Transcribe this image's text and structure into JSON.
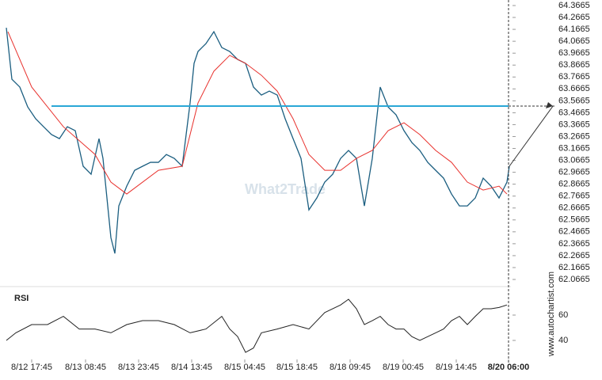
{
  "chart_data": [
    {
      "type": "line",
      "watermark": "What2Trade",
      "source": "www.autochartist.com",
      "xlim": [
        0,
        637
      ],
      "xticks": [
        {
          "value": 32,
          "label": "8/12 17:45"
        },
        {
          "value": 100,
          "label": "8/13 08:45"
        },
        {
          "value": 167,
          "label": "8/13 23:45"
        },
        {
          "value": 234,
          "label": "8/14 13:45"
        },
        {
          "value": 301,
          "label": "8/15 04:45"
        },
        {
          "value": 367,
          "label": "8/15 18:45"
        },
        {
          "value": 434,
          "label": "8/18 09:45"
        },
        {
          "value": 501,
          "label": "8/19 00:45"
        },
        {
          "value": 568,
          "label": "8/19 14:45"
        },
        {
          "value": 634,
          "label": "8/20 06:00"
        }
      ],
      "ylim": [
        62.02,
        64.413
      ],
      "yticks": [
        64.3665,
        64.2665,
        64.1665,
        64.0665,
        63.9665,
        63.8665,
        63.7665,
        63.6665,
        63.5665,
        63.4665,
        63.3665,
        63.2665,
        63.1665,
        63.0665,
        62.9665,
        62.8665,
        62.7665,
        62.6665,
        62.5665,
        62.4665,
        62.3665,
        62.2665,
        62.1665,
        62.0665
      ],
      "level": 63.522,
      "level_start": 57,
      "series": [
        {
          "color": "#1b5e80",
          "x": [
            0,
            7,
            17,
            27,
            37,
            47,
            57,
            67,
            77,
            87,
            97,
            107,
            117,
            122,
            132,
            137,
            142,
            152,
            162,
            172,
            182,
            192,
            202,
            212,
            222,
            232,
            237,
            242,
            252,
            262,
            272,
            282,
            292,
            302,
            312,
            322,
            332,
            342,
            352,
            362,
            372,
            382,
            392,
            402,
            412,
            422,
            432,
            442,
            452,
            462,
            472,
            482,
            492,
            502,
            512,
            522,
            532,
            542,
            552,
            562,
            572,
            582,
            592,
            602,
            612,
            622,
            632,
            635
          ],
          "values": [
            64.18,
            63.748,
            63.682,
            63.515,
            63.416,
            63.349,
            63.283,
            63.249,
            63.349,
            63.316,
            63.017,
            62.95,
            63.249,
            63.083,
            62.418,
            62.285,
            62.684,
            62.85,
            62.983,
            63.017,
            63.05,
            63.05,
            63.116,
            63.083,
            63.017,
            63.549,
            63.881,
            63.981,
            64.047,
            64.147,
            64.014,
            63.981,
            63.914,
            63.881,
            63.682,
            63.615,
            63.648,
            63.615,
            63.416,
            63.249,
            63.083,
            62.651,
            62.751,
            62.884,
            62.95,
            63.083,
            63.15,
            63.083,
            62.684,
            63.083,
            63.682,
            63.515,
            63.449,
            63.316,
            63.216,
            63.15,
            63.05,
            62.983,
            62.917,
            62.784,
            62.684,
            62.684,
            62.751,
            62.917,
            62.85,
            62.751,
            62.884,
            63.017
          ]
        },
        {
          "color": "#e8322e",
          "x": [
            2,
            32,
            72,
            112,
            132,
            152,
            192,
            222,
            242,
            262,
            282,
            302,
            322,
            342,
            362,
            382,
            402,
            422,
            442,
            462,
            482,
            502,
            522,
            542,
            562,
            582,
            602,
            622,
            632
          ],
          "values": [
            64.147,
            63.682,
            63.349,
            63.116,
            62.884,
            62.784,
            62.983,
            63.017,
            63.549,
            63.815,
            63.948,
            63.881,
            63.781,
            63.648,
            63.416,
            63.116,
            62.983,
            62.983,
            63.083,
            63.15,
            63.316,
            63.382,
            63.283,
            63.15,
            63.05,
            62.884,
            62.817,
            62.85,
            62.784
          ]
        }
      ]
    },
    {
      "type": "line",
      "title": "RSI",
      "xlim": [
        0,
        637
      ],
      "ylim": [
        27.5,
        77.5
      ],
      "yticks": [
        60,
        40
      ],
      "series": [
        {
          "color": "#222222",
          "x": [
            0,
            12,
            32,
            52,
            72,
            92,
            112,
            132,
            152,
            172,
            192,
            212,
            232,
            252,
            272,
            282,
            292,
            302,
            312,
            322,
            342,
            362,
            382,
            402,
            422,
            432,
            442,
            452,
            462,
            472,
            482,
            492,
            502,
            512,
            522,
            532,
            542,
            552,
            562,
            572,
            582,
            592,
            602,
            612,
            622,
            632
          ],
          "values": [
            40,
            46,
            52.5,
            52.5,
            59,
            49,
            49,
            46,
            52.5,
            55.6,
            55.6,
            52.5,
            46,
            49,
            59,
            49,
            43,
            30.6,
            34,
            46,
            49,
            52.5,
            49,
            62,
            68,
            72.5,
            65,
            52.5,
            55.6,
            59,
            52.5,
            49,
            49,
            43,
            40,
            43,
            46,
            49,
            55.6,
            59,
            52.5,
            59,
            65,
            65,
            66,
            68
          ]
        }
      ]
    }
  ]
}
